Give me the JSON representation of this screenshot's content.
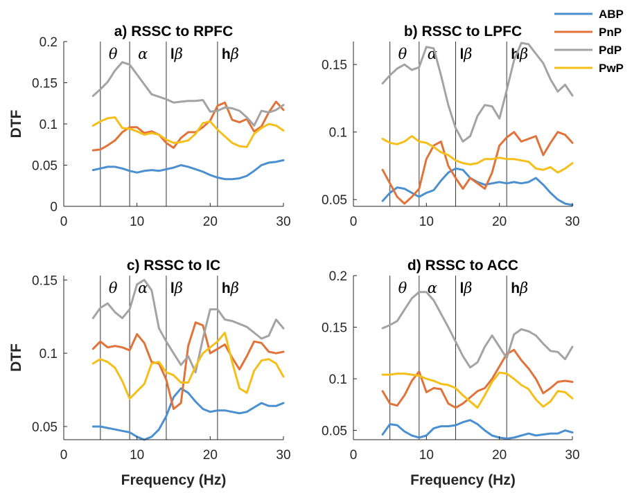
{
  "chart_data": [
    {
      "type": "line",
      "title": "a) RSSC to RPFC",
      "xlabel": "",
      "ylabel": "DTF",
      "xlim": [
        0,
        30
      ],
      "ylim": [
        0,
        0.2
      ],
      "xticks": [
        "0",
        "10",
        "20",
        "30"
      ],
      "yticks": [
        {
          "v": 0,
          "label": "0"
        },
        {
          "v": 0.05,
          "label": "0.05"
        },
        {
          "v": 0.1,
          "label": "0.1"
        },
        {
          "v": 0.15,
          "label": "0.15"
        },
        {
          "v": 0.2,
          "label": "0.2"
        }
      ],
      "x": [
        4,
        5,
        6,
        7,
        8,
        9,
        10,
        11,
        12,
        13,
        14,
        15,
        16,
        17,
        18,
        19,
        20,
        21,
        22,
        23,
        24,
        25,
        26,
        27,
        28,
        29,
        30
      ],
      "series": [
        {
          "name": "ABP",
          "values": [
            0.044,
            0.046,
            0.048,
            0.048,
            0.046,
            0.043,
            0.041,
            0.043,
            0.044,
            0.043,
            0.045,
            0.047,
            0.05,
            0.048,
            0.045,
            0.042,
            0.038,
            0.035,
            0.033,
            0.033,
            0.034,
            0.037,
            0.043,
            0.05,
            0.053,
            0.054,
            0.056
          ]
        },
        {
          "name": "PnP",
          "values": [
            0.068,
            0.069,
            0.074,
            0.08,
            0.09,
            0.096,
            0.096,
            0.089,
            0.091,
            0.087,
            0.077,
            0.071,
            0.083,
            0.09,
            0.09,
            0.096,
            0.104,
            0.122,
            0.126,
            0.105,
            0.102,
            0.106,
            0.091,
            0.097,
            0.114,
            0.127,
            0.117
          ]
        },
        {
          "name": "PdP",
          "values": [
            0.134,
            0.142,
            0.151,
            0.165,
            0.175,
            0.172,
            0.16,
            0.148,
            0.136,
            0.133,
            0.13,
            0.126,
            0.127,
            0.128,
            0.128,
            0.129,
            0.115,
            0.116,
            0.12,
            0.119,
            0.116,
            0.108,
            0.098,
            0.116,
            0.114,
            0.117,
            0.123
          ]
        },
        {
          "name": "PwP",
          "values": [
            0.098,
            0.103,
            0.107,
            0.108,
            0.095,
            0.094,
            0.091,
            0.087,
            0.089,
            0.087,
            0.081,
            0.077,
            0.078,
            0.08,
            0.088,
            0.101,
            0.103,
            0.093,
            0.085,
            0.077,
            0.073,
            0.072,
            0.088,
            0.095,
            0.1,
            0.098,
            0.092
          ]
        }
      ]
    },
    {
      "type": "line",
      "title": "b) RSSC to LPFC",
      "xlabel": "",
      "ylabel": "",
      "xlim": [
        0,
        30
      ],
      "ylim": [
        0.045,
        0.167
      ],
      "xticks": [
        "0",
        "10",
        "20",
        "30"
      ],
      "yticks": [
        {
          "v": 0.05,
          "label": "0.05"
        },
        {
          "v": 0.1,
          "label": "0.1"
        },
        {
          "v": 0.15,
          "label": "0.15"
        }
      ],
      "x": [
        4,
        5,
        6,
        7,
        8,
        9,
        10,
        11,
        12,
        13,
        14,
        15,
        16,
        17,
        18,
        19,
        20,
        21,
        22,
        23,
        24,
        25,
        26,
        27,
        28,
        29,
        30
      ],
      "series": [
        {
          "name": "ABP",
          "values": [
            0.049,
            0.055,
            0.059,
            0.058,
            0.055,
            0.052,
            0.055,
            0.057,
            0.064,
            0.07,
            0.073,
            0.072,
            0.066,
            0.063,
            0.061,
            0.062,
            0.063,
            0.062,
            0.063,
            0.062,
            0.063,
            0.066,
            0.061,
            0.055,
            0.05,
            0.047,
            0.046
          ]
        },
        {
          "name": "PnP",
          "values": [
            0.072,
            0.062,
            0.052,
            0.047,
            0.052,
            0.058,
            0.08,
            0.09,
            0.093,
            0.075,
            0.066,
            0.058,
            0.066,
            0.062,
            0.058,
            0.07,
            0.09,
            0.096,
            0.1,
            0.093,
            0.095,
            0.097,
            0.083,
            0.092,
            0.1,
            0.098,
            0.092
          ]
        },
        {
          "name": "PdP",
          "values": [
            0.136,
            0.142,
            0.147,
            0.15,
            0.146,
            0.148,
            0.163,
            0.162,
            0.142,
            0.12,
            0.103,
            0.093,
            0.097,
            0.112,
            0.12,
            0.119,
            0.11,
            0.131,
            0.153,
            0.166,
            0.165,
            0.158,
            0.151,
            0.139,
            0.13,
            0.135,
            0.127
          ]
        },
        {
          "name": "PwP",
          "values": [
            0.095,
            0.092,
            0.091,
            0.093,
            0.097,
            0.093,
            0.092,
            0.089,
            0.085,
            0.083,
            0.079,
            0.077,
            0.076,
            0.077,
            0.08,
            0.08,
            0.081,
            0.08,
            0.08,
            0.079,
            0.078,
            0.073,
            0.072,
            0.074,
            0.07,
            0.073,
            0.077
          ]
        }
      ]
    },
    {
      "type": "line",
      "title": "c) RSSC to IC",
      "xlabel": "Frequency (Hz)",
      "ylabel": "DTF",
      "xlim": [
        0,
        30
      ],
      "ylim": [
        0.041,
        0.153
      ],
      "xticks": [
        "0",
        "10",
        "20",
        "30"
      ],
      "yticks": [
        {
          "v": 0.05,
          "label": "0.05"
        },
        {
          "v": 0.1,
          "label": "0.1"
        },
        {
          "v": 0.15,
          "label": "0.15"
        }
      ],
      "x": [
        4,
        5,
        6,
        7,
        8,
        9,
        10,
        11,
        12,
        13,
        14,
        15,
        16,
        17,
        18,
        19,
        20,
        21,
        22,
        23,
        24,
        25,
        26,
        27,
        28,
        29,
        30
      ],
      "series": [
        {
          "name": "ABP",
          "values": [
            0.05,
            0.05,
            0.049,
            0.048,
            0.047,
            0.046,
            0.043,
            0.041,
            0.043,
            0.048,
            0.057,
            0.07,
            0.076,
            0.073,
            0.067,
            0.062,
            0.06,
            0.061,
            0.061,
            0.06,
            0.059,
            0.06,
            0.063,
            0.066,
            0.064,
            0.064,
            0.066
          ]
        },
        {
          "name": "PnP",
          "values": [
            0.103,
            0.108,
            0.104,
            0.105,
            0.104,
            0.102,
            0.113,
            0.107,
            0.094,
            0.093,
            0.082,
            0.062,
            0.066,
            0.105,
            0.121,
            0.119,
            0.1,
            0.103,
            0.106,
            0.097,
            0.089,
            0.098,
            0.108,
            0.107,
            0.101,
            0.1,
            0.101
          ]
        },
        {
          "name": "PdP",
          "values": [
            0.124,
            0.131,
            0.134,
            0.128,
            0.124,
            0.13,
            0.147,
            0.15,
            0.143,
            0.117,
            0.108,
            0.1,
            0.092,
            0.098,
            0.087,
            0.11,
            0.13,
            0.13,
            0.123,
            0.122,
            0.12,
            0.118,
            0.114,
            0.11,
            0.112,
            0.123,
            0.117
          ]
        },
        {
          "name": "PwP",
          "values": [
            0.093,
            0.096,
            0.094,
            0.09,
            0.081,
            0.069,
            0.074,
            0.079,
            0.093,
            0.094,
            0.087,
            0.085,
            0.08,
            0.08,
            0.091,
            0.1,
            0.104,
            0.108,
            0.114,
            0.094,
            0.076,
            0.073,
            0.088,
            0.095,
            0.096,
            0.093,
            0.084
          ]
        }
      ]
    },
    {
      "type": "line",
      "title": "d) RSSC to ACC",
      "xlabel": "Frequency (Hz)",
      "ylabel": "",
      "xlim": [
        0,
        30
      ],
      "ylim": [
        0.041,
        0.2
      ],
      "xticks": [
        "0",
        "10",
        "20",
        "30"
      ],
      "yticks": [
        {
          "v": 0.05,
          "label": "0.05"
        },
        {
          "v": 0.1,
          "label": "0.1"
        },
        {
          "v": 0.15,
          "label": "0.15"
        },
        {
          "v": 0.2,
          "label": "0.2"
        }
      ],
      "x": [
        4,
        5,
        6,
        7,
        8,
        9,
        10,
        11,
        12,
        13,
        14,
        15,
        16,
        17,
        18,
        19,
        20,
        21,
        22,
        23,
        24,
        25,
        26,
        27,
        28,
        29,
        30
      ],
      "series": [
        {
          "name": "ABP",
          "values": [
            0.046,
            0.056,
            0.055,
            0.049,
            0.045,
            0.043,
            0.045,
            0.052,
            0.054,
            0.054,
            0.055,
            0.058,
            0.06,
            0.056,
            0.05,
            0.045,
            0.043,
            0.042,
            0.043,
            0.045,
            0.047,
            0.045,
            0.046,
            0.047,
            0.047,
            0.05,
            0.048
          ]
        },
        {
          "name": "PnP",
          "values": [
            0.088,
            0.076,
            0.074,
            0.084,
            0.098,
            0.107,
            0.087,
            0.091,
            0.09,
            0.076,
            0.072,
            0.076,
            0.082,
            0.088,
            0.091,
            0.1,
            0.112,
            0.124,
            0.128,
            0.118,
            0.11,
            0.1,
            0.086,
            0.091,
            0.097,
            0.098,
            0.097
          ]
        },
        {
          "name": "PdP",
          "values": [
            0.149,
            0.152,
            0.156,
            0.167,
            0.178,
            0.184,
            0.184,
            0.176,
            0.163,
            0.15,
            0.136,
            0.122,
            0.111,
            0.116,
            0.131,
            0.142,
            0.131,
            0.12,
            0.143,
            0.148,
            0.146,
            0.142,
            0.134,
            0.127,
            0.126,
            0.119,
            0.131
          ]
        },
        {
          "name": "PwP",
          "values": [
            0.104,
            0.104,
            0.105,
            0.105,
            0.104,
            0.103,
            0.1,
            0.098,
            0.095,
            0.094,
            0.091,
            0.084,
            0.078,
            0.072,
            0.084,
            0.097,
            0.106,
            0.105,
            0.1,
            0.094,
            0.09,
            0.08,
            0.073,
            0.078,
            0.088,
            0.087,
            0.081
          ]
        }
      ]
    }
  ],
  "bands": [
    {
      "greek": "θ",
      "prefix": ""
    },
    {
      "greek": "α",
      "prefix": ""
    },
    {
      "greek": "β",
      "prefix": "l"
    },
    {
      "greek": "β",
      "prefix": "h"
    }
  ],
  "band_boundaries_hz": [
    5,
    9,
    14,
    21
  ],
  "legend": {
    "position": "top-right",
    "entries": [
      "ABP",
      "PnP",
      "PdP",
      "PwP"
    ]
  },
  "colors": {
    "ABP": "#4a90d0",
    "PnP": "#e0733a",
    "PdP": "#a3a3a3",
    "PwP": "#f5bf1a",
    "axis": "#262626",
    "boundary": "#333333"
  }
}
